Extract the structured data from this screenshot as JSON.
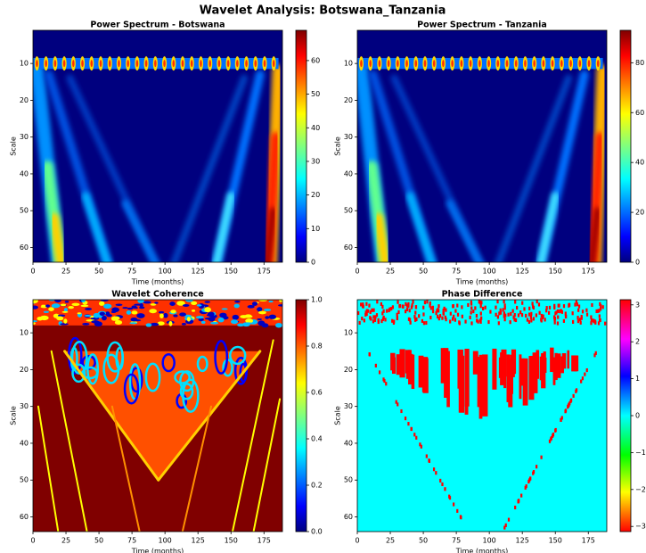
{
  "title": "Wavelet Analysis: Botswana_Tanzania",
  "chart_data": [
    {
      "type": "heatmap",
      "title": "Power Spectrum - Botswana",
      "xlabel": "Time (months)",
      "ylabel": "Scale",
      "cmap": "jet",
      "xlim": [
        0,
        189
      ],
      "xticks": [
        0,
        25,
        50,
        75,
        100,
        125,
        150,
        175
      ],
      "ylim": [
        64,
        1
      ],
      "yticks": [
        10,
        20,
        30,
        40,
        50,
        60
      ],
      "colorbar": {
        "lim": [
          0,
          69
        ],
        "ticks": [
          0,
          10,
          20,
          30,
          40,
          50,
          60
        ]
      }
    },
    {
      "type": "heatmap",
      "title": "Power Spectrum - Tanzania",
      "xlabel": "Time (months)",
      "ylabel": "Scale",
      "cmap": "jet",
      "xlim": [
        0,
        189
      ],
      "xticks": [
        0,
        25,
        50,
        75,
        100,
        125,
        150,
        175
      ],
      "ylim": [
        64,
        1
      ],
      "yticks": [
        10,
        20,
        30,
        40,
        50,
        60
      ],
      "colorbar": {
        "lim": [
          0,
          93
        ],
        "ticks": [
          0,
          20,
          40,
          60,
          80
        ]
      }
    },
    {
      "type": "heatmap",
      "title": "Wavelet Coherence",
      "xlabel": "Time (months)",
      "ylabel": "Scale",
      "cmap": "jet",
      "xlim": [
        0,
        189
      ],
      "xticks": [
        0,
        25,
        50,
        75,
        100,
        125,
        150,
        175
      ],
      "ylim": [
        64,
        1
      ],
      "yticks": [
        10,
        20,
        30,
        40,
        50,
        60
      ],
      "colorbar": {
        "lim": [
          0,
          1
        ],
        "ticks": [
          {
            "value": 0,
            "label": "0.0"
          },
          {
            "value": 0.2,
            "label": "0.2"
          },
          {
            "value": 0.4,
            "label": "0.4"
          },
          {
            "value": 0.6,
            "label": "0.6"
          },
          {
            "value": 0.8,
            "label": "0.8"
          },
          {
            "value": 1,
            "label": "1.0"
          }
        ]
      }
    },
    {
      "type": "heatmap",
      "title": "Phase Difference",
      "xlabel": "Time (months)",
      "ylabel": "Scale",
      "cmap": "hsv",
      "xlim": [
        0,
        189
      ],
      "xticks": [
        0,
        25,
        50,
        75,
        100,
        125,
        150,
        175
      ],
      "ylim": [
        64,
        1
      ],
      "yticks": [
        10,
        20,
        30,
        40,
        50,
        60
      ],
      "colorbar": {
        "lim": [
          -3.14,
          3.14
        ],
        "ticks": [
          {
            "value": -3,
            "label": "−3"
          },
          {
            "value": -2,
            "label": "−2"
          },
          {
            "value": -1,
            "label": "−1"
          },
          0,
          1,
          2,
          3
        ]
      }
    }
  ]
}
